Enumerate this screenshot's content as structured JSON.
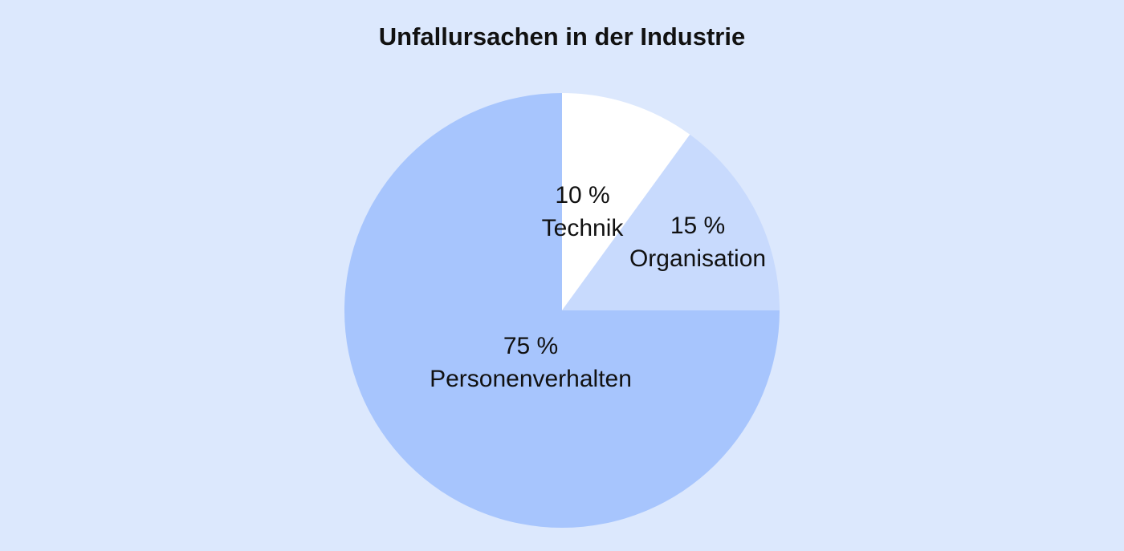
{
  "page": {
    "background": "#dce8fd"
  },
  "chart_data": {
    "type": "pie",
    "title": "Unfallursachen in der Industrie",
    "start_angle_deg": 0,
    "direction": "clockwise",
    "slices": [
      {
        "label": "Technik",
        "value": 10,
        "value_text": "10 %",
        "color": "#ffffff"
      },
      {
        "label": "Organisation",
        "value": 15,
        "value_text": "15 %",
        "color": "#c8dafd"
      },
      {
        "label": "Personenverhalten",
        "value": 75,
        "value_text": "75 %",
        "color": "#a7c5fd"
      }
    ]
  }
}
